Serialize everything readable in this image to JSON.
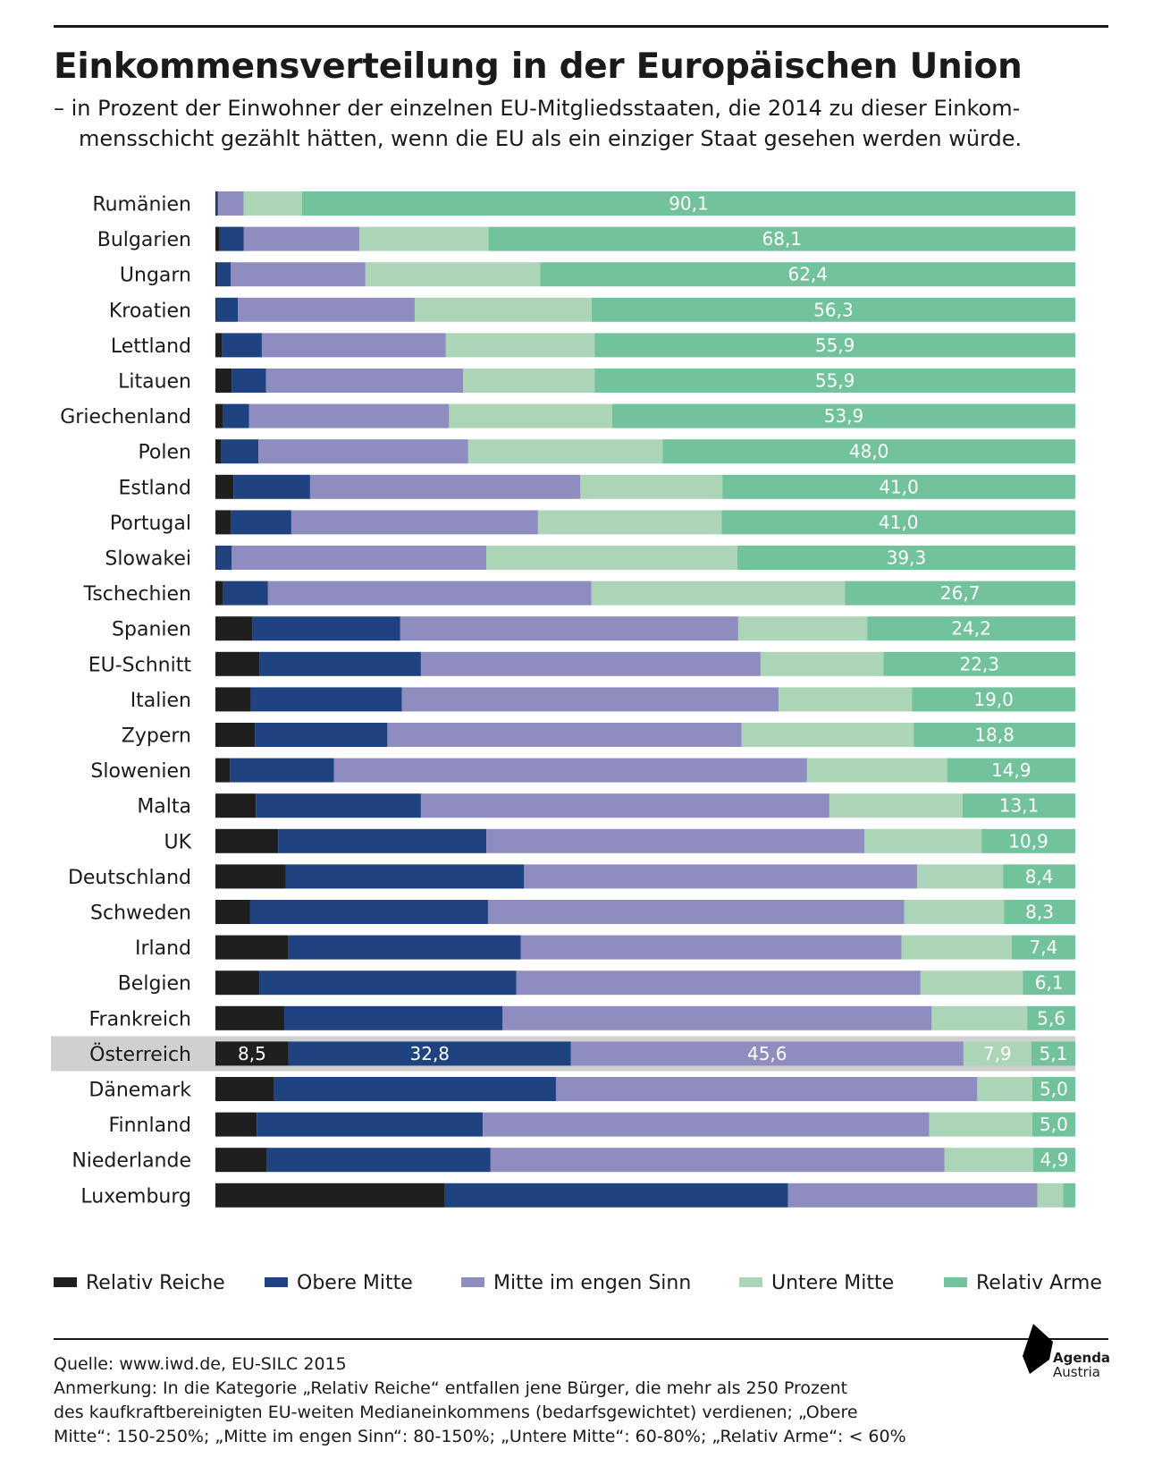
{
  "title": "Einkommensverteilung in der Europäischen Union",
  "subtitle_line1": "– in Prozent der Einwohner der einzelnen EU-Mitgliedsstaaten, die 2014 zu dieser Einkom-",
  "subtitle_line2": "mensschicht gezählt hätten, wenn die EU als ein einziger Staat gesehen werden würde.",
  "colors": {
    "relativ_reiche": "#1f1f1f",
    "obere_mitte": "#1e4380",
    "mitte_eng": "#8f8cc0",
    "untere_mitte": "#abd5b6",
    "relativ_arme": "#72c29c",
    "highlight": "#d0d0d0"
  },
  "legend": [
    {
      "label": "Relativ Reiche",
      "color": "#1f1f1f"
    },
    {
      "label": "Obere Mitte",
      "color": "#1e4380"
    },
    {
      "label": "Mitte im engen Sinn",
      "color": "#8f8cc0"
    },
    {
      "label": "Untere Mitte",
      "color": "#abd5b6"
    },
    {
      "label": "Relativ Arme",
      "color": "#72c29c"
    }
  ],
  "chart_data": {
    "type": "bar",
    "orientation": "horizontal",
    "stacked": true,
    "title": "Einkommensverteilung in der Europäischen Union",
    "xlim": [
      0,
      100
    ],
    "unit": "Prozent",
    "series_names": [
      "Relativ Reiche",
      "Obere Mitte",
      "Mitte im engen Sinn",
      "Untere Mitte",
      "Relativ Arme"
    ],
    "highlight": "Österreich",
    "rows": [
      {
        "country": "Rumänien",
        "values": [
          0.1,
          0.2,
          3.0,
          6.8,
          90.1
        ],
        "label": "90,1"
      },
      {
        "country": "Bulgarien",
        "values": [
          0.5,
          2.8,
          13.4,
          15.0,
          68.1
        ],
        "label": "68,1"
      },
      {
        "country": "Ungarn",
        "values": [
          0.2,
          1.6,
          15.7,
          20.4,
          62.4
        ],
        "label": "62,4"
      },
      {
        "country": "Kroatien",
        "values": [
          0.1,
          2.5,
          20.6,
          20.6,
          56.3
        ],
        "label": "56,3"
      },
      {
        "country": "Lettland",
        "values": [
          0.8,
          4.6,
          21.4,
          17.3,
          55.9
        ],
        "label": "55,9"
      },
      {
        "country": "Litauen",
        "values": [
          1.9,
          4.0,
          22.9,
          15.3,
          55.9
        ],
        "label": "55,9"
      },
      {
        "country": "Griechenland",
        "values": [
          0.9,
          3.0,
          23.3,
          19.0,
          53.9
        ],
        "label": "53,9"
      },
      {
        "country": "Polen",
        "values": [
          0.7,
          4.3,
          24.4,
          22.6,
          48.0
        ],
        "label": "48,0"
      },
      {
        "country": "Estland",
        "values": [
          2.1,
          8.9,
          31.4,
          16.5,
          41.0
        ],
        "label": "41,0"
      },
      {
        "country": "Portugal",
        "values": [
          1.8,
          7.0,
          28.6,
          21.3,
          41.0
        ],
        "label": "41,0"
      },
      {
        "country": "Slowakei",
        "values": [
          0.1,
          1.8,
          29.6,
          29.2,
          39.3
        ],
        "label": "39,3"
      },
      {
        "country": "Tschechien",
        "values": [
          0.9,
          5.2,
          37.5,
          29.4,
          26.7
        ],
        "label": "26,7"
      },
      {
        "country": "Spanien",
        "values": [
          4.3,
          17.2,
          39.3,
          15.0,
          24.2
        ],
        "label": "24,2"
      },
      {
        "country": "EU-Schnitt",
        "values": [
          5.1,
          18.8,
          39.5,
          14.3,
          22.3
        ],
        "label": "22,3"
      },
      {
        "country": "Italien",
        "values": [
          4.1,
          17.6,
          43.8,
          15.5,
          19.0
        ],
        "label": "19,0"
      },
      {
        "country": "Zypern",
        "values": [
          4.6,
          15.4,
          41.2,
          20.0,
          18.8
        ],
        "label": "18,8"
      },
      {
        "country": "Slowenien",
        "values": [
          1.7,
          12.1,
          55.0,
          16.3,
          14.9
        ],
        "label": "14,9"
      },
      {
        "country": "Malta",
        "values": [
          4.7,
          19.2,
          47.5,
          15.5,
          13.1
        ],
        "label": "13,1"
      },
      {
        "country": "UK",
        "values": [
          7.3,
          24.2,
          44.0,
          13.6,
          10.9
        ],
        "label": "10,9"
      },
      {
        "country": "Deutschland",
        "values": [
          8.2,
          27.7,
          45.7,
          10.0,
          8.4
        ],
        "label": "8,4"
      },
      {
        "country": "Schweden",
        "values": [
          4.0,
          27.7,
          48.4,
          11.6,
          8.3
        ],
        "label": "8,3"
      },
      {
        "country": "Irland",
        "values": [
          8.5,
          27.0,
          44.3,
          12.8,
          7.4
        ],
        "label": "7,4"
      },
      {
        "country": "Belgien",
        "values": [
          5.1,
          29.9,
          47.0,
          11.9,
          6.1
        ],
        "label": "6,1"
      },
      {
        "country": "Frankreich",
        "values": [
          8.0,
          25.4,
          49.9,
          11.1,
          5.6
        ],
        "label": "5,6"
      },
      {
        "country": "Österreich",
        "values": [
          8.5,
          32.8,
          45.6,
          7.9,
          5.1
        ],
        "labels": [
          "8,5",
          "32,8",
          "45,6",
          "7,9",
          "5,1"
        ]
      },
      {
        "country": "Dänemark",
        "values": [
          6.8,
          32.8,
          49.0,
          6.4,
          5.0
        ],
        "label": "5,0"
      },
      {
        "country": "Finnland",
        "values": [
          4.8,
          26.3,
          51.9,
          12.0,
          5.0
        ],
        "label": "5,0"
      },
      {
        "country": "Niederlande",
        "values": [
          6.0,
          26.0,
          52.8,
          10.3,
          4.9
        ],
        "label": "4,9"
      },
      {
        "country": "Luxemburg",
        "values": [
          26.7,
          39.9,
          29.0,
          3.0,
          1.4
        ],
        "label": ""
      }
    ]
  },
  "footer": {
    "source": "Quelle: www.iwd.de, EU-SILC 2015",
    "note_line1": "Anmerkung: In die Kategorie „Relativ Reiche“ entfallen jene Bürger, die mehr als 250 Prozent",
    "note_line2": "des kaufkraftbereinigten EU-weiten Medianeinkommens (bedarfsgewichtet) verdienen; „Obere",
    "note_line3": "Mitte“: 150-250%; „Mitte im engen Sinn“: 80-150%; „Untere Mitte“: 60-80%; „Relativ Arme“: < 60%"
  },
  "logo": {
    "line1": "Agenda",
    "line2": "Austria"
  }
}
